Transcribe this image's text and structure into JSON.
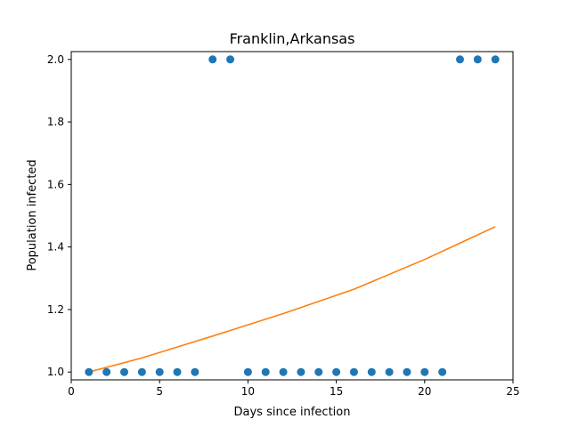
{
  "chart_data": {
    "type": "scatter",
    "title": "Franklin,Arkansas",
    "xlabel": "Days since infection",
    "ylabel": "Population infected",
    "xlim": [
      0,
      25
    ],
    "ylim": [
      0.975,
      2.025
    ],
    "xticks": [
      0,
      5,
      10,
      15,
      20,
      25
    ],
    "yticks": [
      1.0,
      1.2,
      1.4,
      1.6,
      1.8,
      2.0
    ],
    "xtick_labels": [
      "0",
      "5",
      "10",
      "15",
      "20",
      "25"
    ],
    "ytick_labels": [
      "1.0",
      "1.2",
      "1.4",
      "1.6",
      "1.8",
      "2.0"
    ],
    "grid": false,
    "series": [
      {
        "kind": "scatter",
        "color": "#1f77b4",
        "x": [
          1,
          2,
          3,
          4,
          5,
          6,
          7,
          8,
          9,
          10,
          11,
          12,
          13,
          14,
          15,
          16,
          17,
          18,
          19,
          20,
          21,
          22,
          23,
          24
        ],
        "y": [
          1,
          1,
          1,
          1,
          1,
          1,
          1,
          2,
          2,
          1,
          1,
          1,
          1,
          1,
          1,
          1,
          1,
          1,
          1,
          1,
          1,
          2,
          2,
          2
        ]
      },
      {
        "kind": "line",
        "color": "#ff7f0e",
        "x": [
          1,
          4,
          8,
          12,
          16,
          20,
          24
        ],
        "y": [
          1.0,
          1.045,
          1.115,
          1.187,
          1.265,
          1.36,
          1.465
        ]
      }
    ]
  }
}
